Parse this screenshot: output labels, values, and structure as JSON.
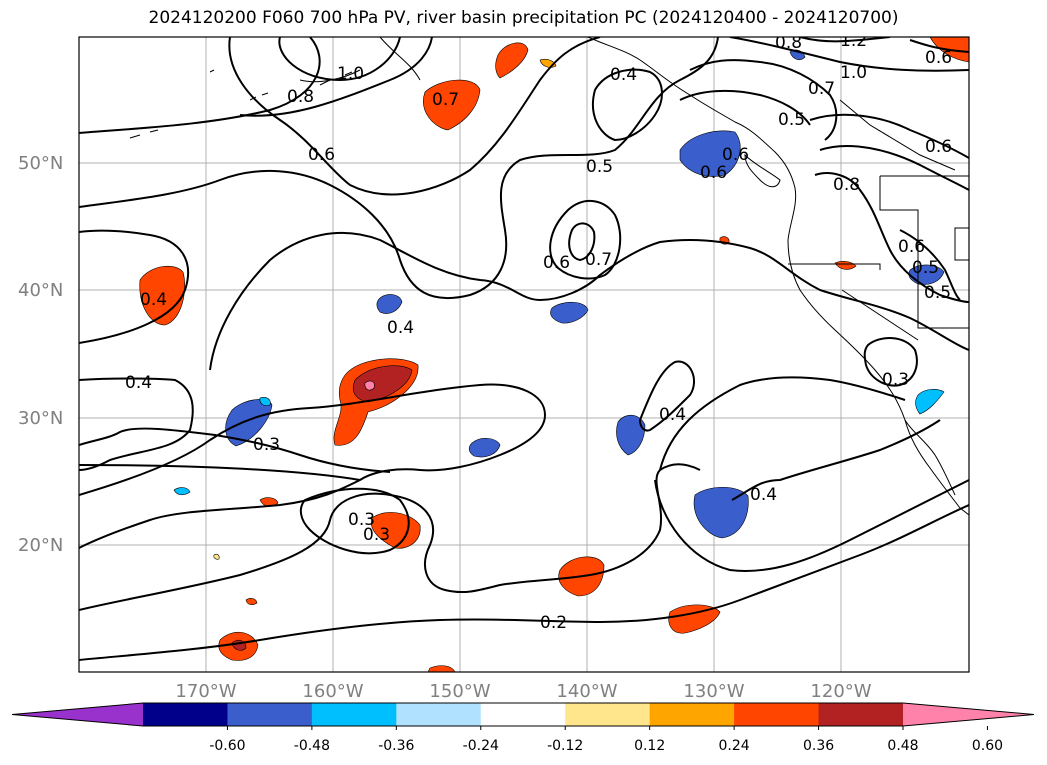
{
  "title": "2024120200 F060 700 hPa PV, river basin precipitation PC (2024120400 - 2024120700)",
  "lat_labels": [
    "50°N",
    "40°N",
    "30°N",
    "20°N"
  ],
  "lon_labels": [
    "170°W",
    "160°W",
    "150°W",
    "140°W",
    "130°W",
    "120°W"
  ],
  "colorbar": {
    "tick_labels": [
      "-0.60",
      "-0.48",
      "-0.36",
      "-0.24",
      "-0.12",
      "0.12",
      "0.24",
      "0.36",
      "0.48",
      "0.60"
    ],
    "colors": [
      "#9932cc",
      "#00008b",
      "#3a5fcd",
      "#00bfff",
      "#b0e2ff",
      "#ffffff",
      "#ffe68c",
      "#ffa500",
      "#ff4500",
      "#b22222",
      "#ff82ab"
    ]
  },
  "contour_labels": [
    "1.2",
    "1.0",
    "1.0",
    "0.8",
    "0.7",
    "0.4",
    "0.5",
    "0.6",
    "0.5",
    "0.8",
    "0.7",
    "0.6",
    "0.6",
    "0.5",
    "0.7",
    "0.6",
    "0.8",
    "0.6",
    "0.6",
    "0.6",
    "0.5",
    "0.4",
    "0.4",
    "0.4",
    "0.3",
    "0.4",
    "0.3",
    "0.4",
    "0.3",
    "0.3",
    "0.2"
  ]
}
